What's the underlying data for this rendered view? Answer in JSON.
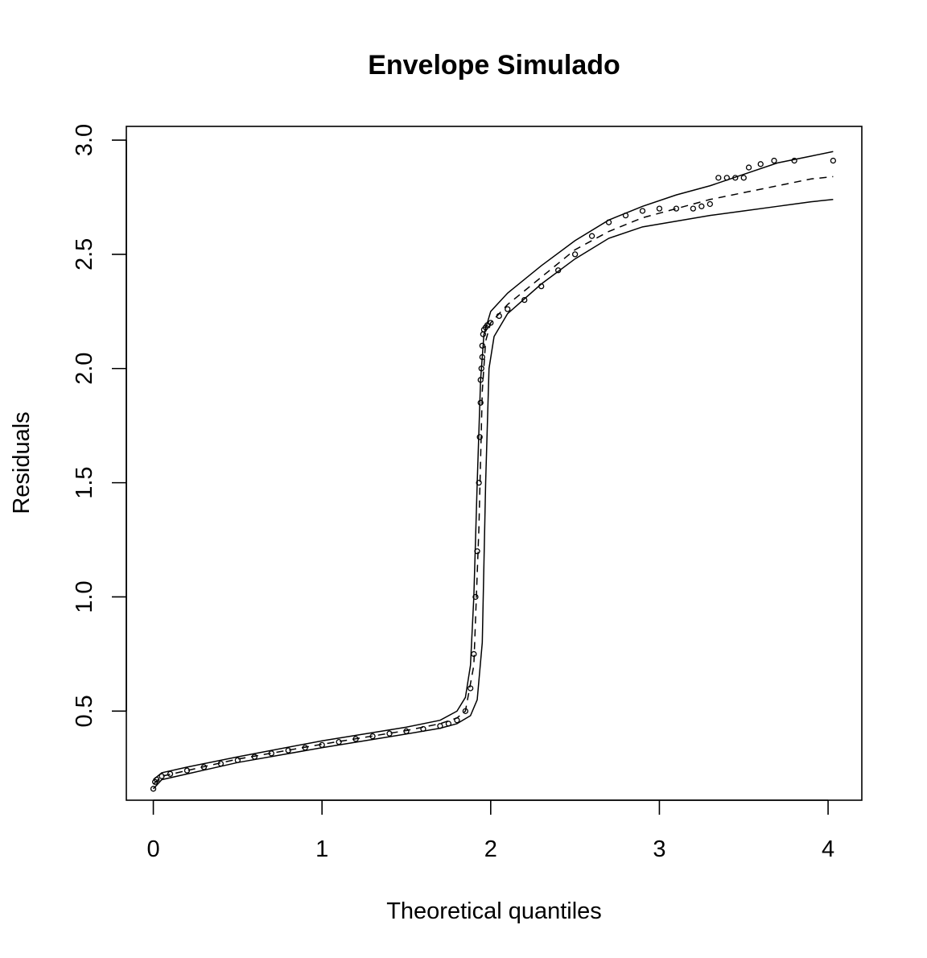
{
  "chart_data": {
    "type": "scatter",
    "title": "Envelope Simulado",
    "xlabel": "Theoretical quantiles",
    "ylabel": "Residuals",
    "xlim": [
      -0.16,
      4.2
    ],
    "ylim": [
      0.11,
      3.06
    ],
    "x_ticks": [
      0,
      1,
      2,
      3,
      4
    ],
    "x_tick_labels": [
      "0",
      "1",
      "2",
      "3",
      "4"
    ],
    "y_ticks": [
      0.5,
      1.0,
      1.5,
      2.0,
      2.5,
      3.0
    ],
    "y_tick_labels": [
      "0.5",
      "1.0",
      "1.5",
      "2.0",
      "2.5",
      "3.0"
    ],
    "grid": false,
    "series": [
      {
        "style": "points",
        "x": [
          0.0,
          0.01,
          0.02,
          0.05,
          0.1,
          0.2,
          0.3,
          0.4,
          0.5,
          0.6,
          0.7,
          0.8,
          0.9,
          1.0,
          1.1,
          1.2,
          1.3,
          1.4,
          1.5,
          1.6,
          1.7,
          1.75,
          1.8,
          1.85,
          1.88,
          1.9,
          1.91,
          1.92,
          1.93,
          1.935,
          1.94,
          1.94,
          1.945,
          1.95,
          1.95,
          1.955,
          1.96,
          1.97,
          1.98,
          2.0,
          2.05,
          2.1,
          2.2,
          2.3,
          2.4,
          2.5,
          2.6,
          2.7,
          2.8,
          2.9,
          3.0,
          3.1,
          3.2,
          3.25,
          3.3,
          3.35,
          3.4,
          3.45,
          3.5,
          3.53,
          3.6,
          3.68,
          3.8,
          4.03
        ],
        "y": [
          0.16,
          0.19,
          0.2,
          0.215,
          0.225,
          0.24,
          0.255,
          0.27,
          0.285,
          0.3,
          0.315,
          0.328,
          0.34,
          0.352,
          0.365,
          0.378,
          0.39,
          0.402,
          0.412,
          0.422,
          0.435,
          0.445,
          0.46,
          0.5,
          0.6,
          0.75,
          1.0,
          1.2,
          1.5,
          1.7,
          1.85,
          1.95,
          2.0,
          2.05,
          2.1,
          2.15,
          2.17,
          2.18,
          2.19,
          2.2,
          2.23,
          2.26,
          2.3,
          2.36,
          2.43,
          2.5,
          2.58,
          2.64,
          2.67,
          2.69,
          2.7,
          2.7,
          2.7,
          2.71,
          2.72,
          2.835,
          2.835,
          2.835,
          2.835,
          2.88,
          2.895,
          2.91,
          2.91,
          2.91
        ]
      },
      {
        "style": "solid",
        "x": [
          0.0,
          0.05,
          0.2,
          0.5,
          1.0,
          1.5,
          1.7,
          1.8,
          1.85,
          1.88,
          1.9,
          1.92,
          1.94,
          1.96,
          2.0,
          2.1,
          2.3,
          2.5,
          2.7,
          2.9,
          3.1,
          3.3,
          3.5,
          3.7,
          3.9,
          4.03
        ],
        "y": [
          0.2,
          0.23,
          0.255,
          0.3,
          0.37,
          0.43,
          0.46,
          0.5,
          0.56,
          0.7,
          1.0,
          1.5,
          1.95,
          2.15,
          2.25,
          2.33,
          2.45,
          2.56,
          2.65,
          2.71,
          2.76,
          2.8,
          2.85,
          2.9,
          2.93,
          2.95
        ]
      },
      {
        "style": "dashed",
        "x": [
          0.0,
          0.05,
          0.2,
          0.5,
          1.0,
          1.5,
          1.7,
          1.8,
          1.85,
          1.9,
          1.93,
          1.95,
          1.97,
          2.0,
          2.1,
          2.3,
          2.5,
          2.7,
          2.9,
          3.1,
          3.3,
          3.5,
          3.7,
          3.9,
          4.03
        ],
        "y": [
          0.18,
          0.215,
          0.24,
          0.29,
          0.355,
          0.415,
          0.445,
          0.47,
          0.5,
          0.7,
          1.3,
          1.9,
          2.12,
          2.2,
          2.28,
          2.4,
          2.52,
          2.6,
          2.66,
          2.7,
          2.74,
          2.77,
          2.8,
          2.83,
          2.84
        ]
      },
      {
        "style": "solid",
        "x": [
          0.0,
          0.05,
          0.2,
          0.5,
          1.0,
          1.5,
          1.7,
          1.8,
          1.88,
          1.92,
          1.95,
          1.97,
          1.99,
          2.02,
          2.1,
          2.3,
          2.5,
          2.7,
          2.9,
          3.1,
          3.3,
          3.5,
          3.7,
          3.9,
          4.03
        ],
        "y": [
          0.16,
          0.2,
          0.225,
          0.275,
          0.34,
          0.4,
          0.425,
          0.445,
          0.48,
          0.55,
          0.8,
          1.5,
          2.0,
          2.14,
          2.24,
          2.37,
          2.48,
          2.57,
          2.62,
          2.645,
          2.67,
          2.69,
          2.71,
          2.73,
          2.74
        ]
      }
    ]
  }
}
